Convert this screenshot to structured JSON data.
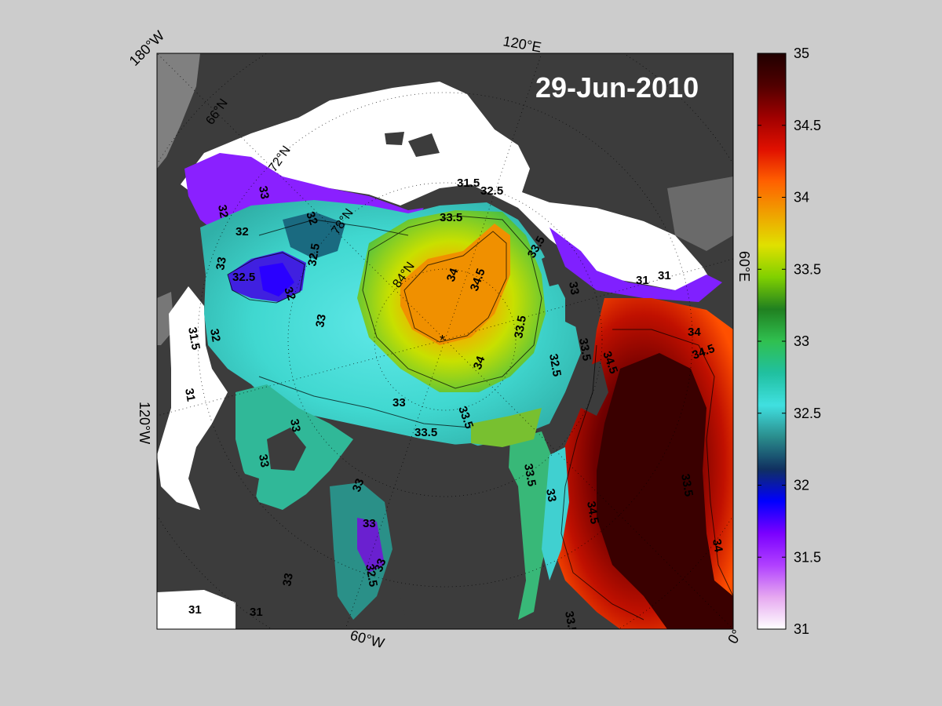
{
  "map": {
    "date_label": "29-Jun-2010",
    "projection": "north-polar-stereographic",
    "longitude_labels": [
      "180°W",
      "120°E",
      "60°E",
      "0°",
      "60°W",
      "120°W"
    ],
    "latitude_labels": [
      "66°N",
      "72°N",
      "78°N",
      "84°N"
    ],
    "north_pole_marker": "*",
    "contour_labels": [
      "31",
      "31.5",
      "32",
      "32.5",
      "33",
      "33.5",
      "34",
      "34.5"
    ],
    "colors": {
      "background": "#cccccc",
      "land": "#3c3c3c",
      "land_shelf": "#808080",
      "sea_ice": "#ffffff"
    }
  },
  "colorbar": {
    "min": 31,
    "max": 35,
    "tick_labels": [
      "35",
      "34.5",
      "34",
      "33.5",
      "33",
      "32.5",
      "32",
      "31.5",
      "31"
    ],
    "colormap": [
      "#ffffff",
      "#e6a8f0",
      "#b040ff",
      "#7a00ff",
      "#0000ff",
      "#103060",
      "#2a8c8c",
      "#40e0e0",
      "#20c0a0",
      "#30c050",
      "#208020",
      "#80d000",
      "#e0e000",
      "#f0a000",
      "#ff6000",
      "#e01000",
      "#a00000",
      "#500000",
      "#200000"
    ]
  }
}
